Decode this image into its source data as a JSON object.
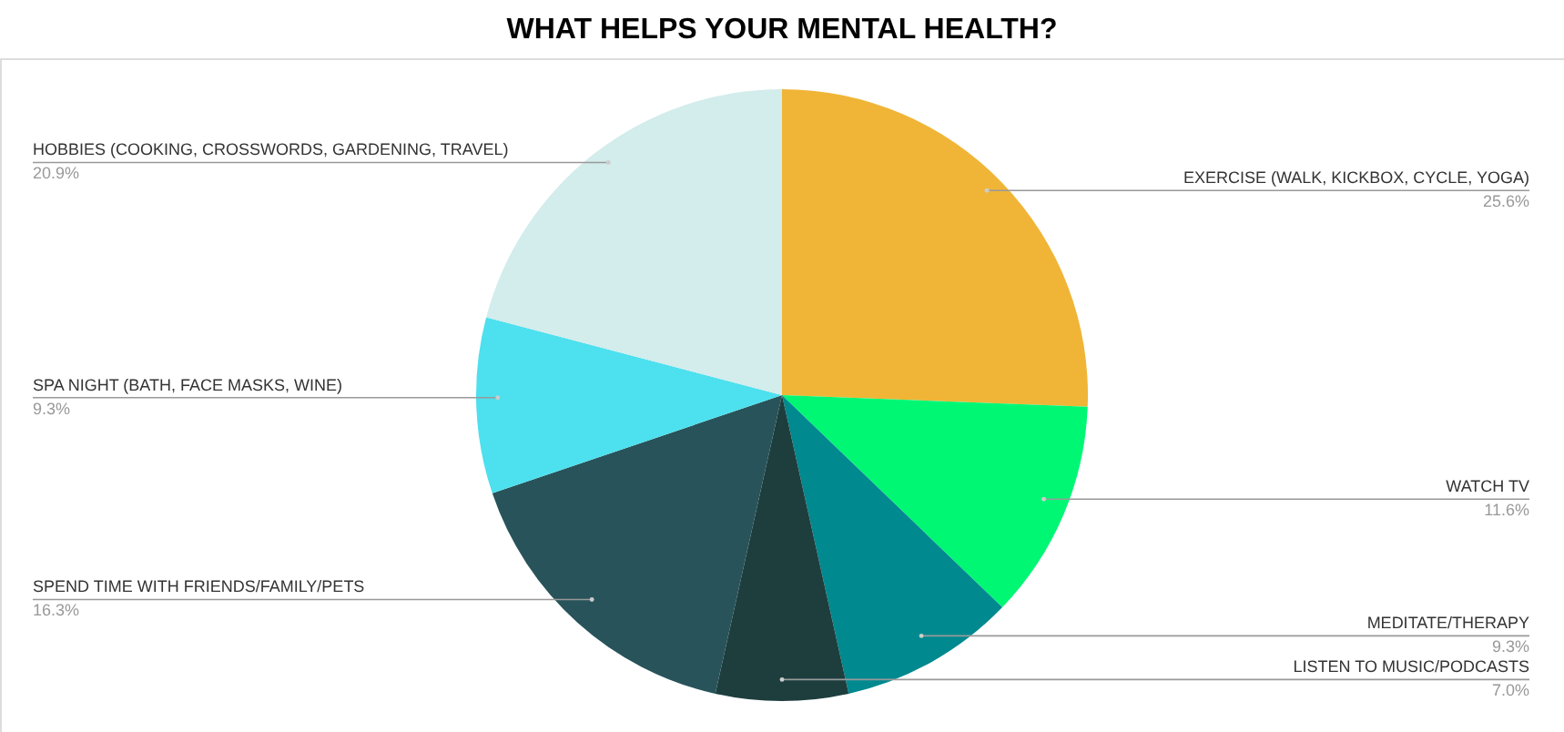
{
  "chart_data": {
    "type": "pie",
    "title": "WHAT HELPS YOUR MENTAL HEALTH?",
    "categories": [
      "EXERCISE (WALK, KICKBOX, CYCLE, YOGA)",
      "WATCH TV",
      "MEDITATE/THERAPY",
      "LISTEN TO MUSIC/PODCASTS",
      "SPEND TIME WITH FRIENDS/FAMILY/PETS",
      "SPA NIGHT (BATH, FACE MASKS, WINE)",
      "HOBBIES (COOKING, CROSSWORDS, GARDENING, TRAVEL)"
    ],
    "values": [
      25.6,
      11.6,
      9.3,
      7.0,
      16.3,
      9.3,
      20.9
    ],
    "value_labels": [
      "25.6%",
      "11.6%",
      "9.3%",
      "7.0%",
      "16.3%",
      "9.3%",
      "20.9%"
    ],
    "colors": [
      "#f0b537",
      "#00f774",
      "#00898f",
      "#1e3e3e",
      "#28535a",
      "#4de0ee",
      "#d3ecec"
    ],
    "legend": false
  }
}
